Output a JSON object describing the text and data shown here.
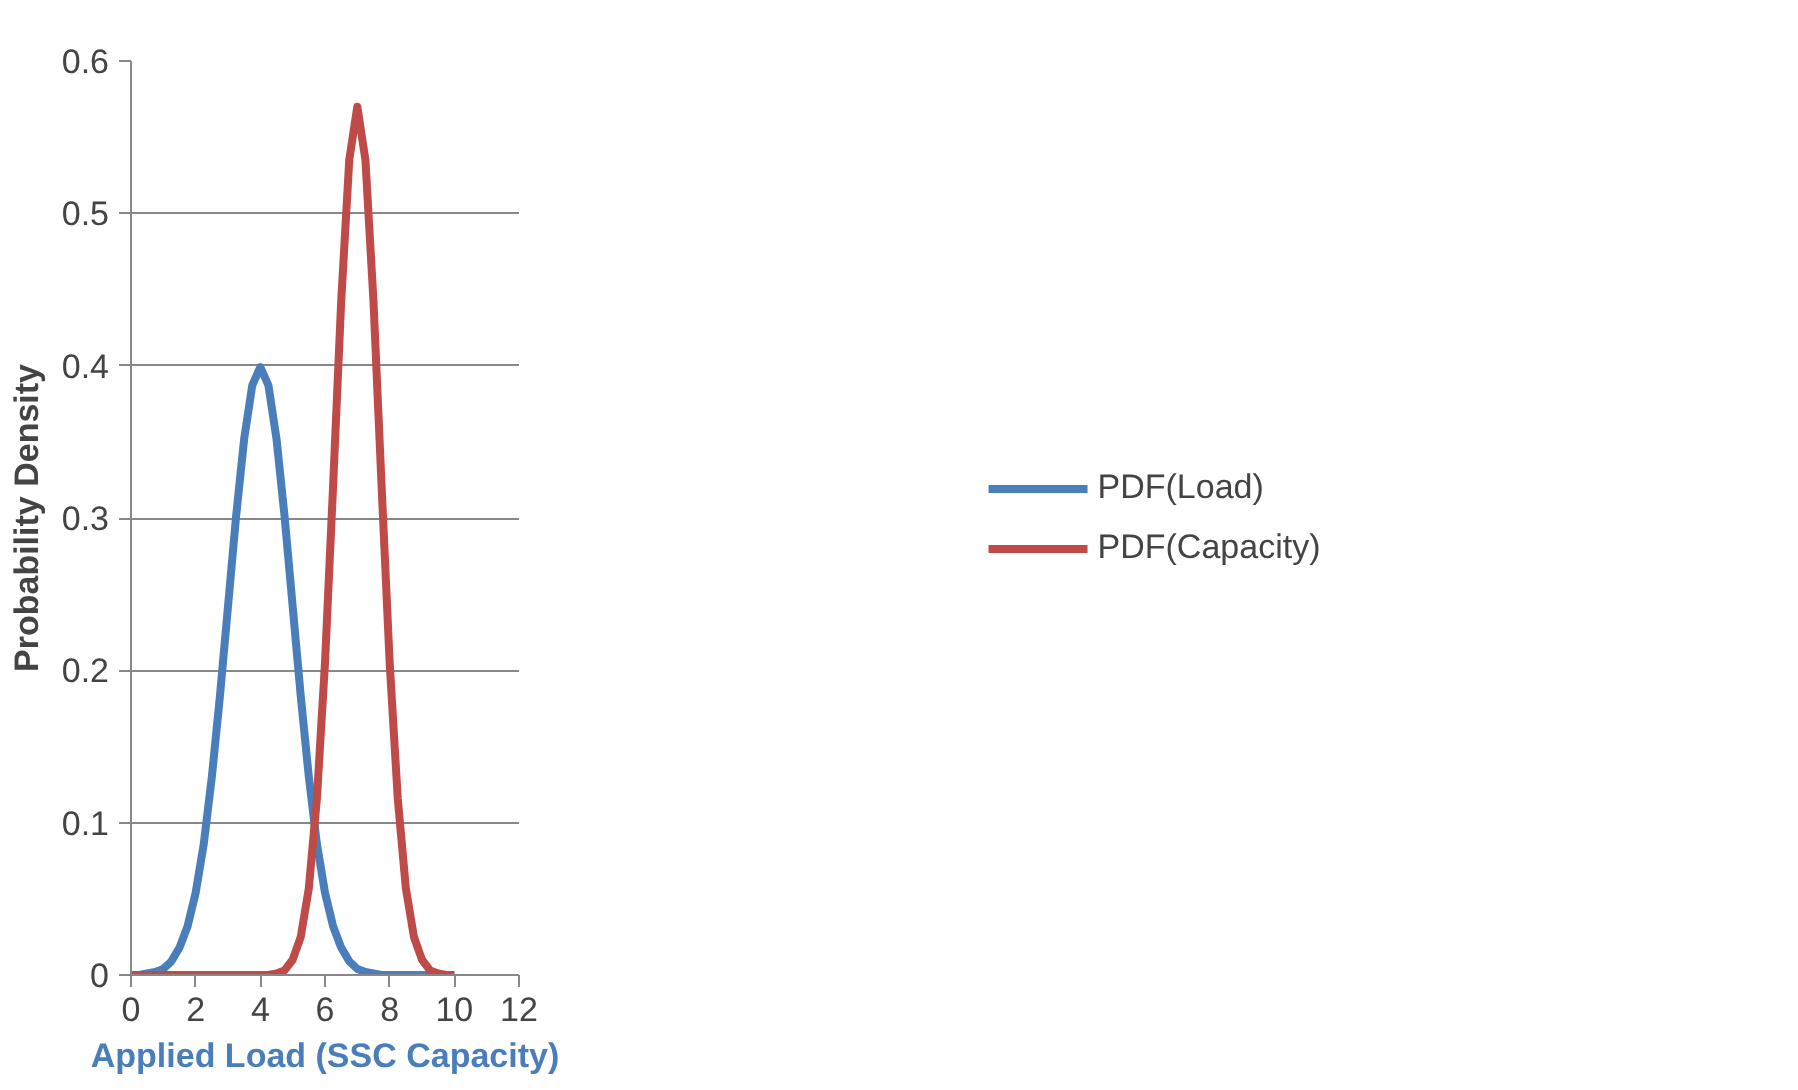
{
  "chart_data": {
    "type": "line",
    "xlabel": "Applied Load (SSC Capacity)",
    "ylabel": "Probability Density",
    "x": [
      0,
      0.25,
      0.5,
      0.75,
      1,
      1.25,
      1.5,
      1.75,
      2,
      2.25,
      2.5,
      2.75,
      3,
      3.25,
      3.5,
      3.75,
      4,
      4.25,
      4.5,
      4.75,
      5,
      5.25,
      5.5,
      5.75,
      6,
      6.25,
      6.5,
      6.75,
      7,
      7.25,
      7.5,
      7.75,
      8,
      8.25,
      8.5,
      8.75,
      9,
      9.25,
      9.5,
      9.75,
      10
    ],
    "series": [
      {
        "name": "PDF(Load)",
        "color": "#4a7ebb",
        "values": [
          0.0,
          0.0,
          0.001,
          0.002,
          0.004,
          0.009,
          0.018,
          0.032,
          0.054,
          0.086,
          0.13,
          0.183,
          0.242,
          0.301,
          0.352,
          0.387,
          0.399,
          0.387,
          0.352,
          0.301,
          0.242,
          0.183,
          0.13,
          0.086,
          0.054,
          0.032,
          0.018,
          0.009,
          0.004,
          0.002,
          0.001,
          0.0,
          0.0,
          0.0,
          0.0,
          0.0,
          0.0,
          0.0,
          0.0,
          0.0,
          0.0
        ]
      },
      {
        "name": "PDF(Capacity)",
        "color": "#be4b48",
        "values": [
          0.0,
          0.0,
          0.0,
          0.0,
          0.0,
          0.0,
          0.0,
          0.0,
          0.0,
          0.0,
          0.0,
          0.0,
          0.0,
          0.0,
          0.0,
          0.0,
          0.0,
          0.0,
          0.001,
          0.003,
          0.01,
          0.025,
          0.057,
          0.116,
          0.205,
          0.321,
          0.442,
          0.535,
          0.57,
          0.535,
          0.442,
          0.321,
          0.205,
          0.116,
          0.057,
          0.025,
          0.01,
          0.003,
          0.001,
          0.0,
          0.0
        ]
      }
    ],
    "xlim": [
      0,
      12
    ],
    "xticks": [
      0,
      2,
      4,
      6,
      8,
      10,
      12
    ],
    "ylim": [
      0,
      0.6
    ],
    "yticks": [
      0,
      0.1,
      0.2,
      0.3,
      0.4,
      0.5,
      0.6
    ],
    "grid": "y",
    "legend": "right",
    "marker": "none",
    "line_style": "solid"
  }
}
